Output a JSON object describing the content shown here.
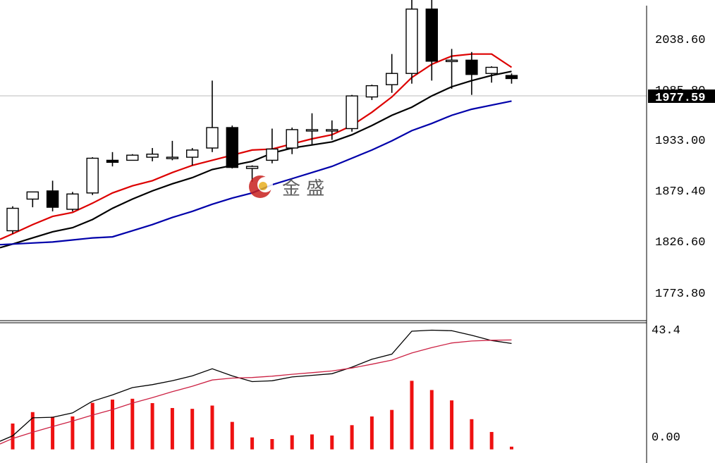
{
  "chart_data": [
    {
      "type": "candlestick",
      "title": "",
      "current_price_label": "1977.59",
      "y_ticks": [
        "2038.60",
        "1985.80",
        "1933.00",
        "1879.40",
        "1826.60",
        "1773.80"
      ],
      "ylim": [
        1741,
        2048
      ],
      "grid": false,
      "candles": [
        {
          "o": 1829,
          "h": 1853,
          "l": 1826,
          "c": 1851
        },
        {
          "o": 1860,
          "h": 1865,
          "l": 1852,
          "c": 1867
        },
        {
          "o": 1868,
          "h": 1878,
          "l": 1848,
          "c": 1852
        },
        {
          "o": 1850,
          "h": 1867,
          "l": 1848,
          "c": 1865
        },
        {
          "o": 1866,
          "h": 1901,
          "l": 1864,
          "c": 1900
        },
        {
          "o": 1898,
          "h": 1906,
          "l": 1892,
          "c": 1896
        },
        {
          "o": 1898,
          "h": 1904,
          "l": 1898,
          "c": 1903
        },
        {
          "o": 1901,
          "h": 1910,
          "l": 1897,
          "c": 1904
        },
        {
          "o": 1900,
          "h": 1917,
          "l": 1898,
          "c": 1901
        },
        {
          "o": 1901,
          "h": 1910,
          "l": 1893,
          "c": 1908
        },
        {
          "o": 1910,
          "h": 1976,
          "l": 1906,
          "c": 1930
        },
        {
          "o": 1930,
          "h": 1932,
          "l": 1890,
          "c": 1891
        },
        {
          "o": 1890,
          "h": 1893,
          "l": 1877,
          "c": 1892
        },
        {
          "o": 1898,
          "h": 1929,
          "l": 1895,
          "c": 1909
        },
        {
          "o": 1910,
          "h": 1930,
          "l": 1904,
          "c": 1928
        },
        {
          "o": 1928,
          "h": 1944,
          "l": 1913,
          "c": 1928
        },
        {
          "o": 1928,
          "h": 1937,
          "l": 1918,
          "c": 1928
        },
        {
          "o": 1929,
          "h": 1962,
          "l": 1926,
          "c": 1961
        },
        {
          "o": 1960,
          "h": 1972,
          "l": 1957,
          "c": 1971
        },
        {
          "o": 1972,
          "h": 2002,
          "l": 1964,
          "c": 1983
        },
        {
          "o": 1983,
          "h": 2061,
          "l": 1973,
          "c": 2046
        },
        {
          "o": 2046,
          "h": 2061,
          "l": 1976,
          "c": 1995
        },
        {
          "o": 1996,
          "h": 2007,
          "l": 1968,
          "c": 1996
        },
        {
          "o": 1996,
          "h": 2004,
          "l": 1962,
          "c": 1982
        },
        {
          "o": 1983,
          "h": 1990,
          "l": 1974,
          "c": 1989
        },
        {
          "o": 1981,
          "h": 1983,
          "l": 1973,
          "c": 1978
        }
      ],
      "series": [
        {
          "color": "#dd0000",
          "values": [
            1826,
            1835,
            1843,
            1847,
            1856,
            1866,
            1873,
            1878,
            1886,
            1893,
            1898,
            1903,
            1908,
            1909,
            1914,
            1919,
            1923,
            1932,
            1945,
            1960,
            1979,
            1992,
            2000,
            2002,
            2002,
            1989
          ]
        },
        {
          "color": "#000000",
          "values": [
            1816,
            1822,
            1828,
            1832,
            1840,
            1851,
            1860,
            1868,
            1875,
            1881,
            1889,
            1893,
            1897,
            1905,
            1910,
            1913,
            1916,
            1923,
            1932,
            1942,
            1950,
            1961,
            1970,
            1976,
            1981,
            1985
          ]
        },
        {
          "color": "#0000aa",
          "values": [
            1816,
            1817,
            1818,
            1820,
            1822,
            1823,
            1829,
            1835,
            1842,
            1848,
            1855,
            1861,
            1866,
            1874,
            1880,
            1886,
            1892,
            1900,
            1908,
            1917,
            1927,
            1934,
            1942,
            1948,
            1952,
            1956
          ]
        }
      ]
    },
    {
      "type": "bar",
      "title": "",
      "y_ticks": [
        "43.4",
        "0.00"
      ],
      "ylim": [
        -5,
        46
      ],
      "values": [
        9.5,
        13.7,
        12.0,
        12.1,
        17.1,
        18.3,
        18.6,
        17.0,
        15.2,
        14.9,
        16.1,
        10.1,
        4.4,
        3.8,
        5.2,
        5.5,
        5.1,
        8.9,
        12.1,
        14.5,
        25.2,
        21.8,
        18.0,
        11.1,
        6.4,
        1.0
      ],
      "series": [
        {
          "color": "#000000",
          "values": [
            5.0,
            11.6,
            11.8,
            13.4,
            17.7,
            20.0,
            22.7,
            23.8,
            25.2,
            27.0,
            29.6,
            27.0,
            24.9,
            25.2,
            26.6,
            27.2,
            27.8,
            30.2,
            33.1,
            35.0,
            43.4,
            43.8,
            43.6,
            41.9,
            40.0,
            38.9
          ]
        },
        {
          "color": "#cc2244",
          "values": [
            4.0,
            6.3,
            8.4,
            10.4,
            12.6,
            14.6,
            17.0,
            19.0,
            21.2,
            23.2,
            25.5,
            26.2,
            26.4,
            26.9,
            27.6,
            28.2,
            28.8,
            29.9,
            31.3,
            32.8,
            35.4,
            37.4,
            39.1,
            39.8,
            40.1,
            40.2
          ]
        }
      ]
    }
  ]
}
